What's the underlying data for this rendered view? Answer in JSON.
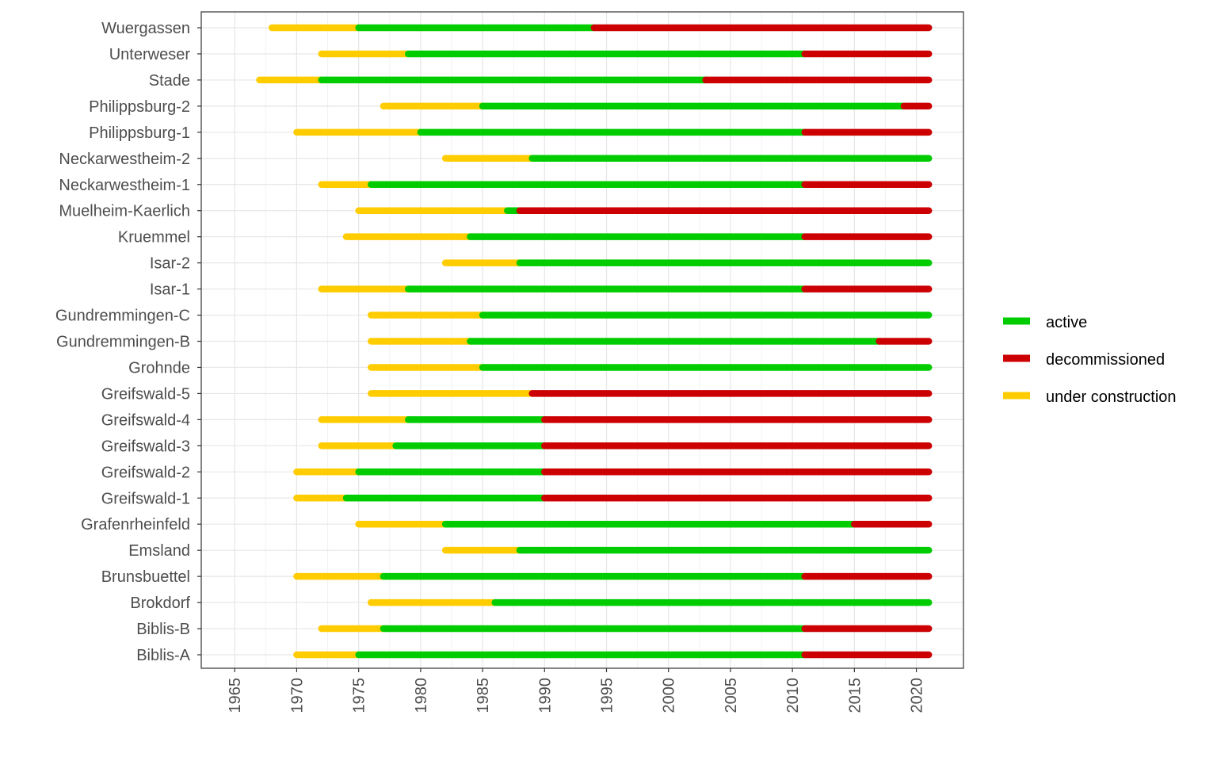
{
  "chart_data": {
    "type": "timeline",
    "title": "",
    "xlabel": "",
    "ylabel": "",
    "xlim": [
      1962.3,
      2023.8
    ],
    "x_ticks": [
      1965,
      1970,
      1975,
      1980,
      1985,
      1990,
      1995,
      2000,
      2005,
      2010,
      2015,
      2020
    ],
    "grid": true,
    "legend_position": "right",
    "end_year": 2021,
    "states": [
      {
        "key": "active",
        "label": "active",
        "color": "#00cc00"
      },
      {
        "key": "decommissioned",
        "label": "decommissioned",
        "color": "#cc0000"
      },
      {
        "key": "construction",
        "label": "under construction",
        "color": "#ffcc00"
      }
    ],
    "plants": [
      {
        "name": "Wuergassen",
        "construction_start": 1968,
        "active_start": 1975,
        "decommissioned_start": 1994
      },
      {
        "name": "Unterweser",
        "construction_start": 1972,
        "active_start": 1979,
        "decommissioned_start": 2011
      },
      {
        "name": "Stade",
        "construction_start": 1967,
        "active_start": 1972,
        "decommissioned_start": 2003
      },
      {
        "name": "Philippsburg-2",
        "construction_start": 1977,
        "active_start": 1985,
        "decommissioned_start": 2019
      },
      {
        "name": "Philippsburg-1",
        "construction_start": 1970,
        "active_start": 1980,
        "decommissioned_start": 2011
      },
      {
        "name": "Neckarwestheim-2",
        "construction_start": 1982,
        "active_start": 1989,
        "decommissioned_start": null
      },
      {
        "name": "Neckarwestheim-1",
        "construction_start": 1972,
        "active_start": 1976,
        "decommissioned_start": 2011
      },
      {
        "name": "Muelheim-Kaerlich",
        "construction_start": 1975,
        "active_start": 1987,
        "decommissioned_start": 1988
      },
      {
        "name": "Kruemmel",
        "construction_start": 1974,
        "active_start": 1984,
        "decommissioned_start": 2011
      },
      {
        "name": "Isar-2",
        "construction_start": 1982,
        "active_start": 1988,
        "decommissioned_start": null
      },
      {
        "name": "Isar-1",
        "construction_start": 1972,
        "active_start": 1979,
        "decommissioned_start": 2011
      },
      {
        "name": "Gundremmingen-C",
        "construction_start": 1976,
        "active_start": 1985,
        "decommissioned_start": null
      },
      {
        "name": "Gundremmingen-B",
        "construction_start": 1976,
        "active_start": 1984,
        "decommissioned_start": 2017
      },
      {
        "name": "Grohnde",
        "construction_start": 1976,
        "active_start": 1985,
        "decommissioned_start": null
      },
      {
        "name": "Greifswald-5",
        "construction_start": 1976,
        "active_start": null,
        "decommissioned_start": 1989
      },
      {
        "name": "Greifswald-4",
        "construction_start": 1972,
        "active_start": 1979,
        "decommissioned_start": 1990
      },
      {
        "name": "Greifswald-3",
        "construction_start": 1972,
        "active_start": 1978,
        "decommissioned_start": 1990
      },
      {
        "name": "Greifswald-2",
        "construction_start": 1970,
        "active_start": 1975,
        "decommissioned_start": 1990
      },
      {
        "name": "Greifswald-1",
        "construction_start": 1970,
        "active_start": 1974,
        "decommissioned_start": 1990
      },
      {
        "name": "Grafenrheinfeld",
        "construction_start": 1975,
        "active_start": 1982,
        "decommissioned_start": 2015
      },
      {
        "name": "Emsland",
        "construction_start": 1982,
        "active_start": 1988,
        "decommissioned_start": null
      },
      {
        "name": "Brunsbuettel",
        "construction_start": 1970,
        "active_start": 1977,
        "decommissioned_start": 2011
      },
      {
        "name": "Brokdorf",
        "construction_start": 1976,
        "active_start": 1986,
        "decommissioned_start": null
      },
      {
        "name": "Biblis-B",
        "construction_start": 1972,
        "active_start": 1977,
        "decommissioned_start": 2011
      },
      {
        "name": "Biblis-A",
        "construction_start": 1970,
        "active_start": 1975,
        "decommissioned_start": 2011
      }
    ]
  }
}
